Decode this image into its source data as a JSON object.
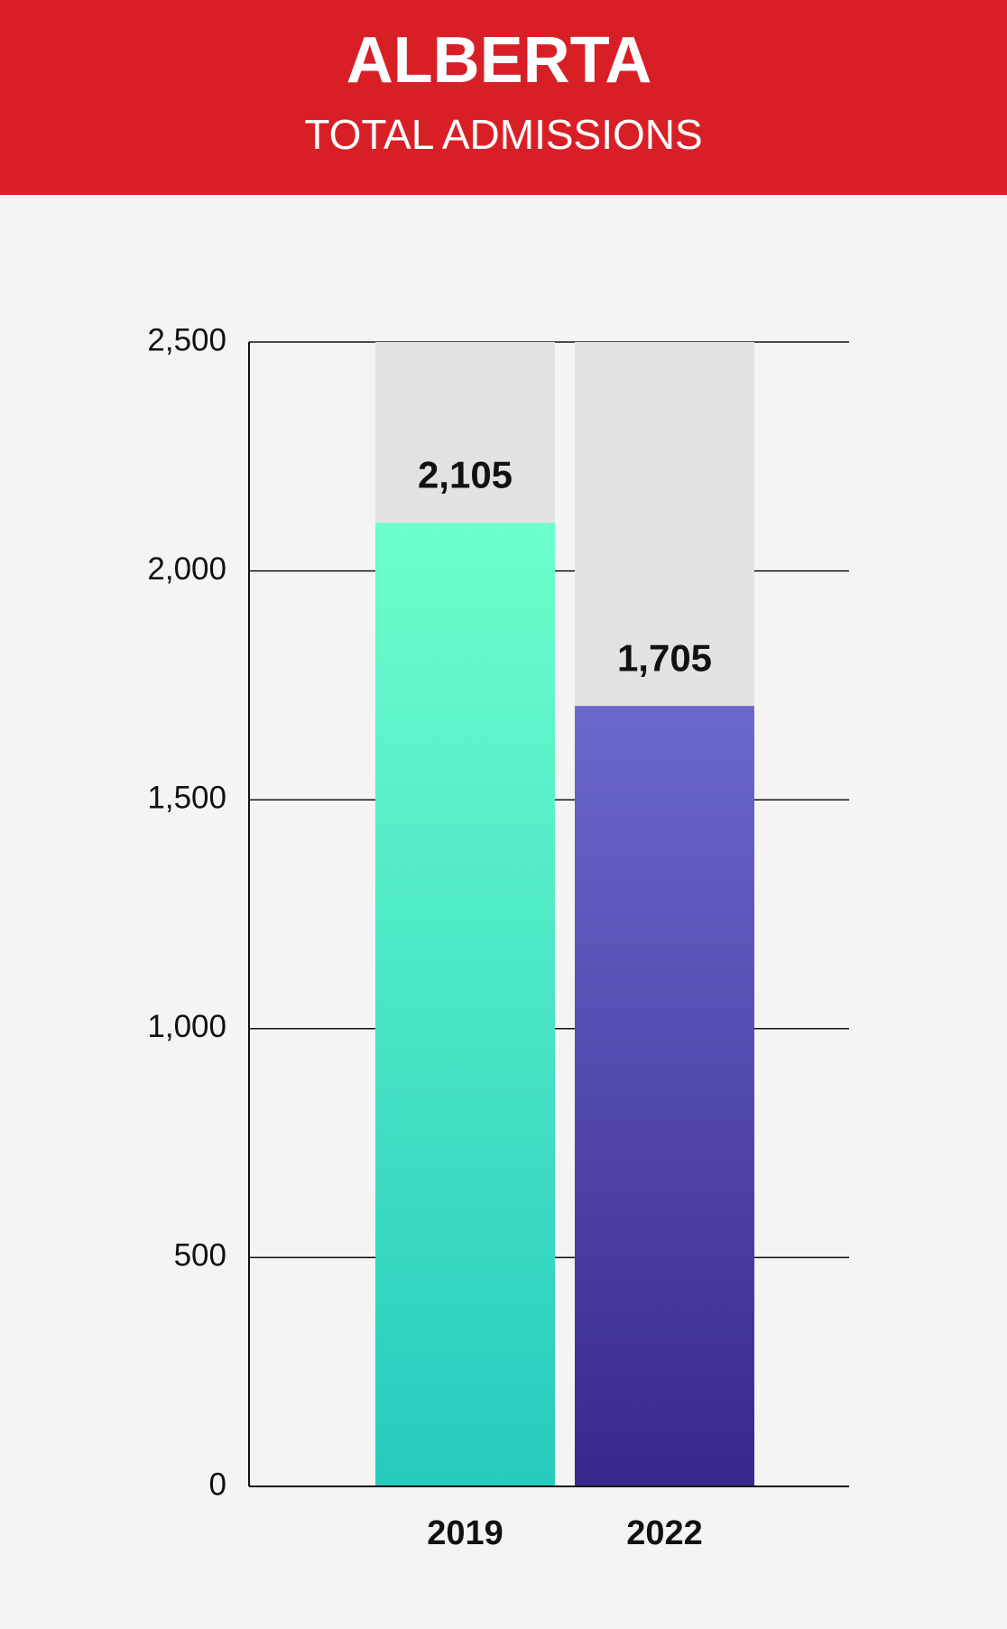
{
  "chart_data": {
    "type": "bar",
    "title": "ALBERTA",
    "subtitle": "TOTAL ADMISSIONS",
    "categories": [
      "2019",
      "2022"
    ],
    "values": [
      2105,
      1705
    ],
    "value_labels": [
      "2,105",
      "1,705"
    ],
    "gradients": [
      [
        "#6dffcc",
        "#26cbbe"
      ],
      [
        "#6b69cc",
        "#38288d"
      ]
    ],
    "track_color": "#e2e2e2",
    "header_color": "#d91f26",
    "ylim": [
      0,
      2500
    ],
    "yticks": [
      0,
      500,
      {
        "value": 1000,
        "label": "1,000"
      },
      {
        "value": 1500,
        "label": "1,500"
      },
      {
        "value": 2000,
        "label": "2,000"
      },
      {
        "value": 2500,
        "label": "2,500"
      }
    ],
    "grid": true
  }
}
